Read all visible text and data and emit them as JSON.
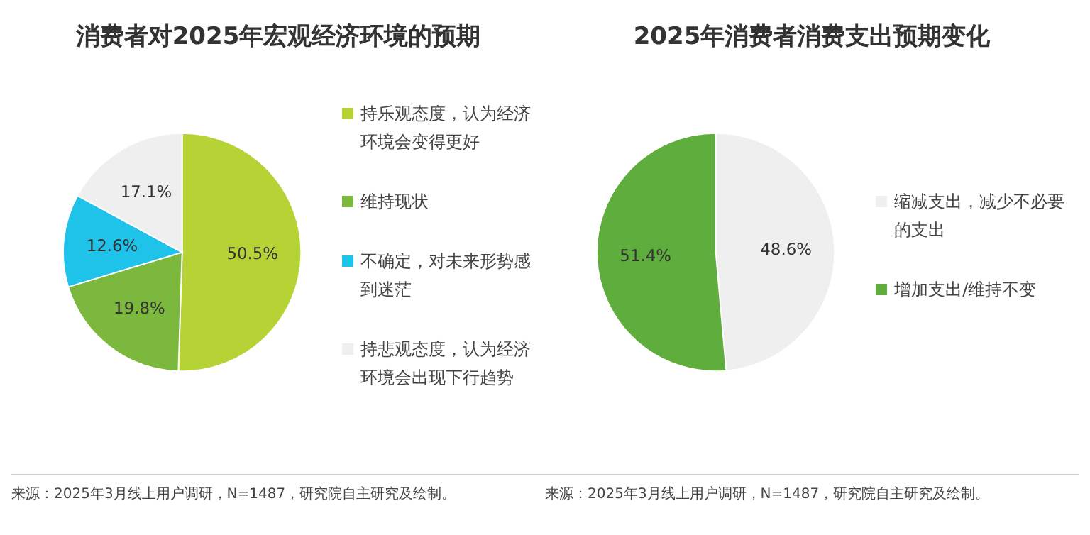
{
  "chart_data": [
    {
      "type": "pie",
      "title": "消费者对2025年宏观经济环境的预期",
      "categories": [
        "持乐观态度，认为经济环境会变得更好",
        "维持现状",
        "不确定，对未来形势感到迷茫",
        "持悲观态度，认为经济环境会出现下行趋势"
      ],
      "values": [
        50.5,
        19.8,
        12.6,
        17.1
      ],
      "colors": [
        "#b5d334",
        "#7cb83e",
        "#1fc3ea",
        "#efefef"
      ],
      "value_labels": [
        "50.5%",
        "19.8%",
        "12.6%",
        "17.1%"
      ],
      "legend": "right",
      "annotations": [
        "来源：2025年3月线上用户调研，N=1487，研究院自主研究及绘制。"
      ]
    },
    {
      "type": "pie",
      "title": "2025年消费者消费支出预期变化",
      "categories": [
        "缩减支出，减少不必要的支出",
        "增加支出/维持不变"
      ],
      "values": [
        48.6,
        51.4
      ],
      "colors": [
        "#efefef",
        "#5fad3c"
      ],
      "value_labels": [
        "48.6%",
        "51.4%"
      ],
      "legend": "right",
      "annotations": [
        "来源：2025年3月线上用户调研，N=1487，研究院自主研究及绘制。"
      ]
    }
  ]
}
